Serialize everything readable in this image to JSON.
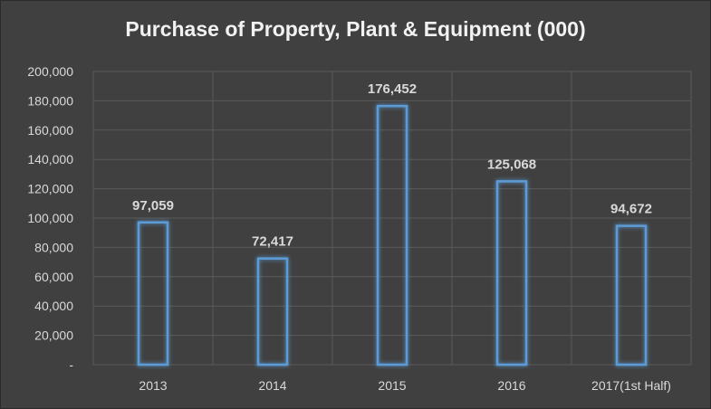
{
  "chart_data": {
    "type": "bar",
    "title": "Purchase of Property, Plant & Equipment (000)",
    "categories": [
      "2013",
      "2014",
      "2015",
      "2016",
      "2017(1st Half)"
    ],
    "values": [
      97059,
      72417,
      176452,
      125068,
      94672
    ],
    "data_labels": [
      "97,059",
      "72,417",
      "176,452",
      "125,068",
      "94,672"
    ],
    "ylim": [
      0,
      200000
    ],
    "y_ticks": [
      0,
      20000,
      40000,
      60000,
      80000,
      100000,
      120000,
      140000,
      160000,
      180000,
      200000
    ],
    "y_tick_labels": [
      "-",
      "20,000",
      "40,000",
      "60,000",
      "80,000",
      "100,000",
      "120,000",
      "140,000",
      "160,000",
      "180,000",
      "200,000"
    ],
    "xlabel": "",
    "ylabel": "",
    "grid": true,
    "legend": "none",
    "colors": {
      "background": "#404040",
      "gridline": "#5a5a5a",
      "bar_outline": "#5b9bd5",
      "bar_glow": "#3a78b8",
      "text": "#d9d9d9",
      "title": "#f2f2f2"
    }
  }
}
